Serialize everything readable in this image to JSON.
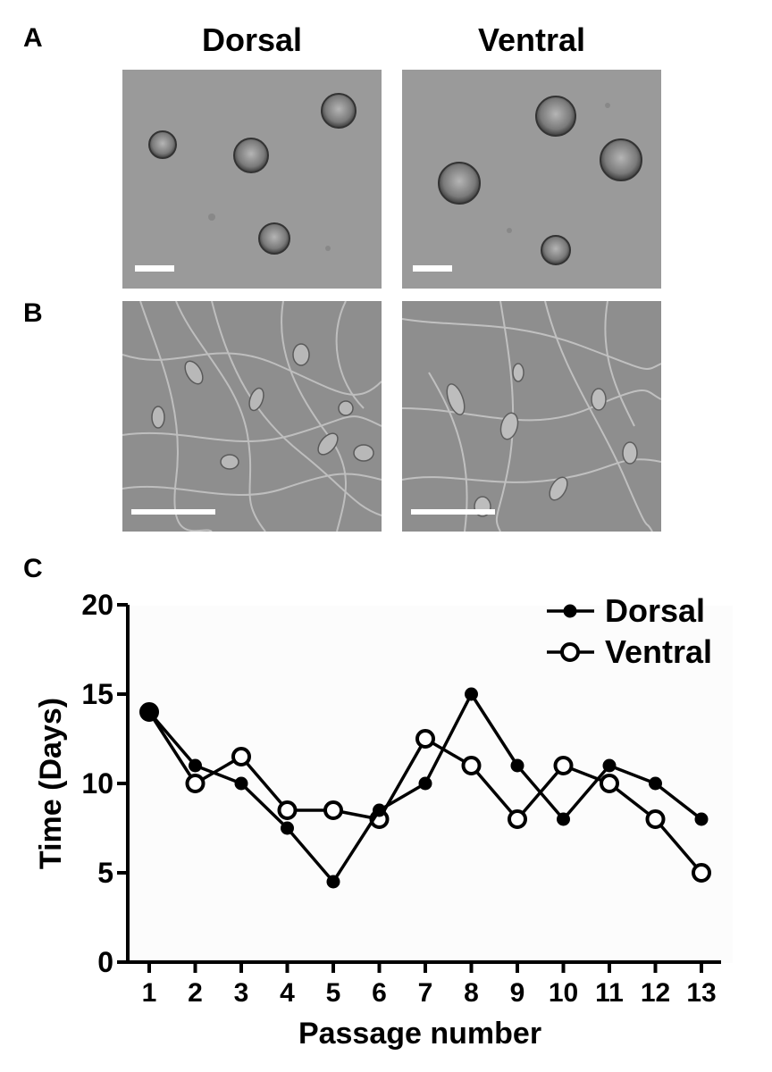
{
  "panels": {
    "a": {
      "label": "A",
      "left_title": "Dorsal",
      "right_title": "Ventral"
    },
    "b": {
      "label": "B"
    },
    "c": {
      "label": "C"
    }
  },
  "micrographs": [
    {
      "panel": "A",
      "column": "Dorsal",
      "content": "neurospheres"
    },
    {
      "panel": "A",
      "column": "Ventral",
      "content": "neurospheres"
    },
    {
      "panel": "B",
      "column": "Dorsal",
      "content": "differentiated-cells"
    },
    {
      "panel": "B",
      "column": "Ventral",
      "content": "differentiated-cells"
    }
  ],
  "chart_data": {
    "type": "line",
    "title": "",
    "xlabel": "Passage number",
    "ylabel": "Time (Days)",
    "ylim": [
      0,
      20
    ],
    "yticks": [
      0,
      5,
      10,
      15,
      20
    ],
    "x": [
      1,
      2,
      3,
      4,
      5,
      6,
      7,
      8,
      9,
      10,
      11,
      12,
      13
    ],
    "grid": false,
    "legend_position": "top-right",
    "series": [
      {
        "name": "Dorsal",
        "marker": "filled-circle",
        "color": "#000000",
        "values": [
          14,
          11,
          10,
          7.5,
          4.5,
          8.5,
          10,
          15,
          11,
          8,
          11,
          10,
          8
        ]
      },
      {
        "name": "Ventral",
        "marker": "open-circle",
        "color": "#000000",
        "values": [
          14,
          10,
          11.5,
          8.5,
          8.5,
          8,
          12.5,
          11,
          8,
          11,
          10,
          8,
          5
        ]
      }
    ]
  }
}
